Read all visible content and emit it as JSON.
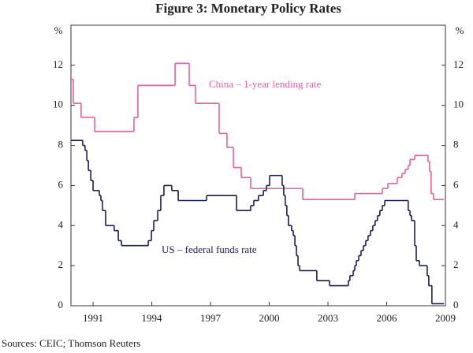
{
  "chart_data": {
    "type": "line",
    "step": true,
    "title": "Figure 3: Monetary Policy Rates",
    "y_unit": "%",
    "source": "Sources: CEIC; Thomson Reuters",
    "xlim": [
      1989.87,
      2009
    ],
    "xticks": [
      1991,
      1994,
      1997,
      2000,
      2003,
      2006,
      2009
    ],
    "ylim": [
      0,
      14
    ],
    "yticks": [
      0,
      2,
      4,
      6,
      8,
      10,
      12
    ],
    "series": [
      {
        "name": "China – 1-year lending rate",
        "color": "#e8609f",
        "x": [
          1989.87,
          1989.99,
          1990.39,
          1991.08,
          1993.09,
          1993.29,
          1995.19,
          1995.91,
          1996.23,
          1997.44,
          1997.84,
          1998.17,
          1998.57,
          1999.05,
          2001.71,
          2004.37,
          2005.78,
          2006.06,
          2006.54,
          2006.78,
          2006.94,
          2007.1,
          2007.19,
          2007.43,
          2008.11,
          2008.19,
          2008.27,
          2008.39,
          2008.92
        ],
        "values": [
          11.3,
          10.1,
          9.4,
          8.7,
          9.4,
          11.0,
          12.1,
          11.0,
          10.1,
          8.6,
          7.9,
          6.9,
          6.4,
          5.85,
          5.3,
          5.6,
          5.85,
          6.1,
          6.4,
          6.6,
          6.8,
          7.0,
          7.3,
          7.5,
          7.2,
          6.7,
          5.6,
          5.3,
          5.3
        ]
      },
      {
        "name": "US – federal funds rate",
        "color": "#1c1c5c",
        "x": [
          1989.87,
          1990.47,
          1990.59,
          1990.68,
          1990.76,
          1990.88,
          1991.0,
          1991.32,
          1991.4,
          1991.48,
          1991.64,
          1992.08,
          1992.29,
          1992.45,
          1993.82,
          1993.98,
          1994.1,
          1994.3,
          1994.46,
          1994.62,
          1995.02,
          1995.35,
          1996.8,
          1998.33,
          1999.05,
          1999.21,
          1999.45,
          1999.7,
          1999.86,
          2000.02,
          2000.66,
          2000.74,
          2000.82,
          2000.9,
          2000.98,
          2001.14,
          2001.23,
          2001.31,
          2001.39,
          2001.47,
          2001.55,
          2002.43,
          2003.08,
          2004.04,
          2004.12,
          2004.29,
          2004.37,
          2004.45,
          2004.57,
          2004.69,
          2004.81,
          2004.93,
          2005.05,
          2005.17,
          2005.29,
          2005.41,
          2005.53,
          2005.65,
          2005.78,
          2005.9,
          2007.1,
          2007.19,
          2007.27,
          2007.43,
          2007.51,
          2007.67,
          2008.07,
          2008.15,
          2008.31,
          2008.92
        ],
        "values": [
          8.25,
          8.0,
          7.75,
          7.25,
          6.75,
          6.25,
          5.75,
          5.5,
          5.25,
          4.75,
          4.0,
          3.75,
          3.25,
          3.0,
          3.25,
          3.75,
          4.25,
          4.75,
          5.5,
          6.0,
          5.75,
          5.25,
          5.5,
          4.75,
          5.0,
          5.25,
          5.5,
          5.75,
          6.0,
          6.5,
          6.0,
          5.5,
          5.0,
          4.5,
          4.0,
          3.75,
          3.5,
          3.0,
          2.5,
          2.0,
          1.75,
          1.25,
          1.0,
          1.25,
          1.5,
          1.75,
          2.0,
          2.25,
          2.5,
          2.75,
          3.0,
          3.25,
          3.5,
          3.75,
          4.0,
          4.25,
          4.5,
          4.75,
          5.0,
          5.25,
          4.75,
          4.5,
          4.25,
          3.0,
          2.25,
          2.0,
          1.5,
          1.0,
          0.1,
          0.1
        ]
      }
    ]
  }
}
